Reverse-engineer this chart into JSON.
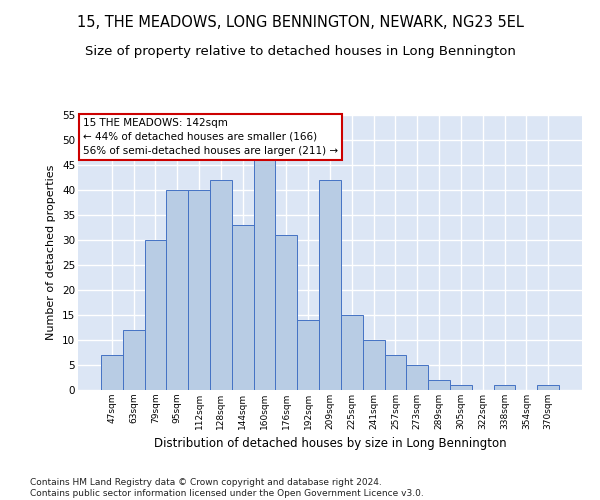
{
  "title": "15, THE MEADOWS, LONG BENNINGTON, NEWARK, NG23 5EL",
  "subtitle": "Size of property relative to detached houses in Long Bennington",
  "xlabel": "Distribution of detached houses by size in Long Bennington",
  "ylabel": "Number of detached properties",
  "categories": [
    "47sqm",
    "63sqm",
    "79sqm",
    "95sqm",
    "112sqm",
    "128sqm",
    "144sqm",
    "160sqm",
    "176sqm",
    "192sqm",
    "209sqm",
    "225sqm",
    "241sqm",
    "257sqm",
    "273sqm",
    "289sqm",
    "305sqm",
    "322sqm",
    "338sqm",
    "354sqm",
    "370sqm"
  ],
  "values": [
    7,
    12,
    30,
    40,
    40,
    42,
    33,
    46,
    31,
    14,
    42,
    15,
    10,
    7,
    5,
    2,
    1,
    0,
    1,
    0,
    1
  ],
  "bar_color": "#b8cce4",
  "bar_edge_color": "#4472c4",
  "background_color": "#ffffff",
  "plot_bg_color": "#dce6f5",
  "grid_color": "#ffffff",
  "annotation_text": "15 THE MEADOWS: 142sqm\n← 44% of detached houses are smaller (166)\n56% of semi-detached houses are larger (211) →",
  "annotation_box_color": "#ffffff",
  "annotation_box_edge": "#cc0000",
  "ylim": [
    0,
    55
  ],
  "yticks": [
    0,
    5,
    10,
    15,
    20,
    25,
    30,
    35,
    40,
    45,
    50,
    55
  ],
  "title_fontsize": 10.5,
  "subtitle_fontsize": 9.5,
  "xlabel_fontsize": 8.5,
  "ylabel_fontsize": 8,
  "footnote": "Contains HM Land Registry data © Crown copyright and database right 2024.\nContains public sector information licensed under the Open Government Licence v3.0.",
  "footnote_fontsize": 6.5
}
